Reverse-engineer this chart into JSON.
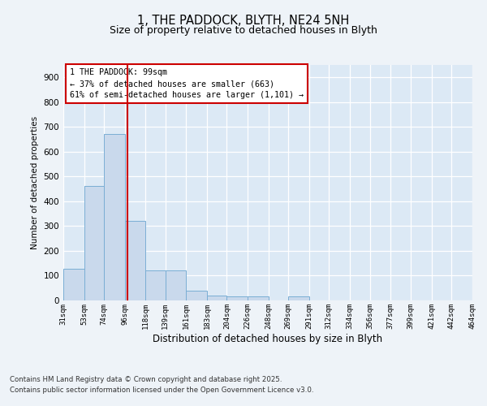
{
  "title_line1": "1, THE PADDOCK, BLYTH, NE24 5NH",
  "title_line2": "Size of property relative to detached houses in Blyth",
  "xlabel": "Distribution of detached houses by size in Blyth",
  "ylabel": "Number of detached properties",
  "bar_color": "#c9d9ec",
  "bar_edge_color": "#7aaed4",
  "background_color": "#dce9f5",
  "grid_color": "#ffffff",
  "fig_bg_color": "#eef3f8",
  "red_line_x": 99,
  "annotation_text": "1 THE PADDOCK: 99sqm\n← 37% of detached houses are smaller (663)\n61% of semi-detached houses are larger (1,101) →",
  "annotation_box_color": "#ffffff",
  "annotation_box_edge": "#cc0000",
  "footer_line1": "Contains HM Land Registry data © Crown copyright and database right 2025.",
  "footer_line2": "Contains public sector information licensed under the Open Government Licence v3.0.",
  "bins": [
    31,
    53,
    74,
    96,
    118,
    139,
    161,
    183,
    204,
    226,
    248,
    269,
    291,
    312,
    334,
    356,
    377,
    399,
    421,
    442,
    464
  ],
  "counts": [
    128,
    462,
    672,
    320,
    120,
    120,
    40,
    20,
    15,
    15,
    0,
    15,
    0,
    0,
    0,
    0,
    0,
    0,
    0,
    0
  ],
  "ylim": [
    0,
    950
  ],
  "yticks": [
    0,
    100,
    200,
    300,
    400,
    500,
    600,
    700,
    800,
    900
  ]
}
